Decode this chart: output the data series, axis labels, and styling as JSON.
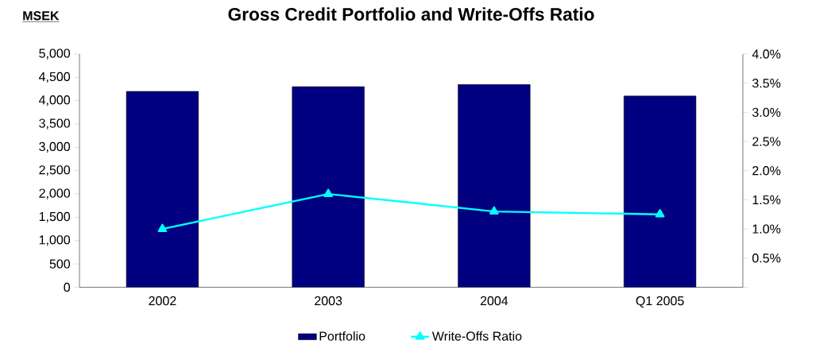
{
  "chart_data": {
    "type": "bar",
    "title": "Gross Credit Portfolio and Write-Offs Ratio",
    "ylabel": "MSEK",
    "categories": [
      "2002",
      "2003",
      "2004",
      "Q1 2005"
    ],
    "series": [
      {
        "name": "Portfolio",
        "color": "#000080",
        "values": [
          4200,
          4300,
          4350,
          4100
        ]
      },
      {
        "name": "Write-Offs Ratio",
        "type": "line",
        "axis": "y2",
        "color": "#00ffff",
        "values": [
          1.0,
          1.6,
          1.3,
          1.25
        ]
      }
    ],
    "ylim": [
      0,
      5000
    ],
    "yticks": [
      0,
      {
        "value": 500,
        "label": "500"
      },
      {
        "value": 1000,
        "label": "1,000"
      },
      {
        "value": 1500,
        "label": "1,500"
      },
      {
        "value": 2000,
        "label": "2,000"
      },
      {
        "value": 2500,
        "label": "2,500"
      },
      {
        "value": 3000,
        "label": "3,000"
      },
      {
        "value": 3500,
        "label": "3,500"
      },
      {
        "value": 4000,
        "label": "4,000"
      },
      {
        "value": 4500,
        "label": "4,500"
      },
      {
        "value": 5000,
        "label": "5,000"
      }
    ],
    "y2lim": [
      0,
      4
    ],
    "y2ticks": [
      {
        "value": 0,
        "label": null
      },
      {
        "value": 0.5,
        "label": "0.5%"
      },
      {
        "value": 1,
        "label": "1.0%"
      },
      {
        "value": 1.5,
        "label": "1.5%"
      },
      {
        "value": 2,
        "label": "2.0%"
      },
      {
        "value": 2.5,
        "label": "2.5%"
      },
      {
        "value": 3,
        "label": "3.0%"
      },
      {
        "value": 3.5,
        "label": "3.5%"
      },
      {
        "value": 4,
        "label": "4.0%"
      }
    ],
    "marker": "triangle",
    "legend": "bottom",
    "grid": false
  }
}
